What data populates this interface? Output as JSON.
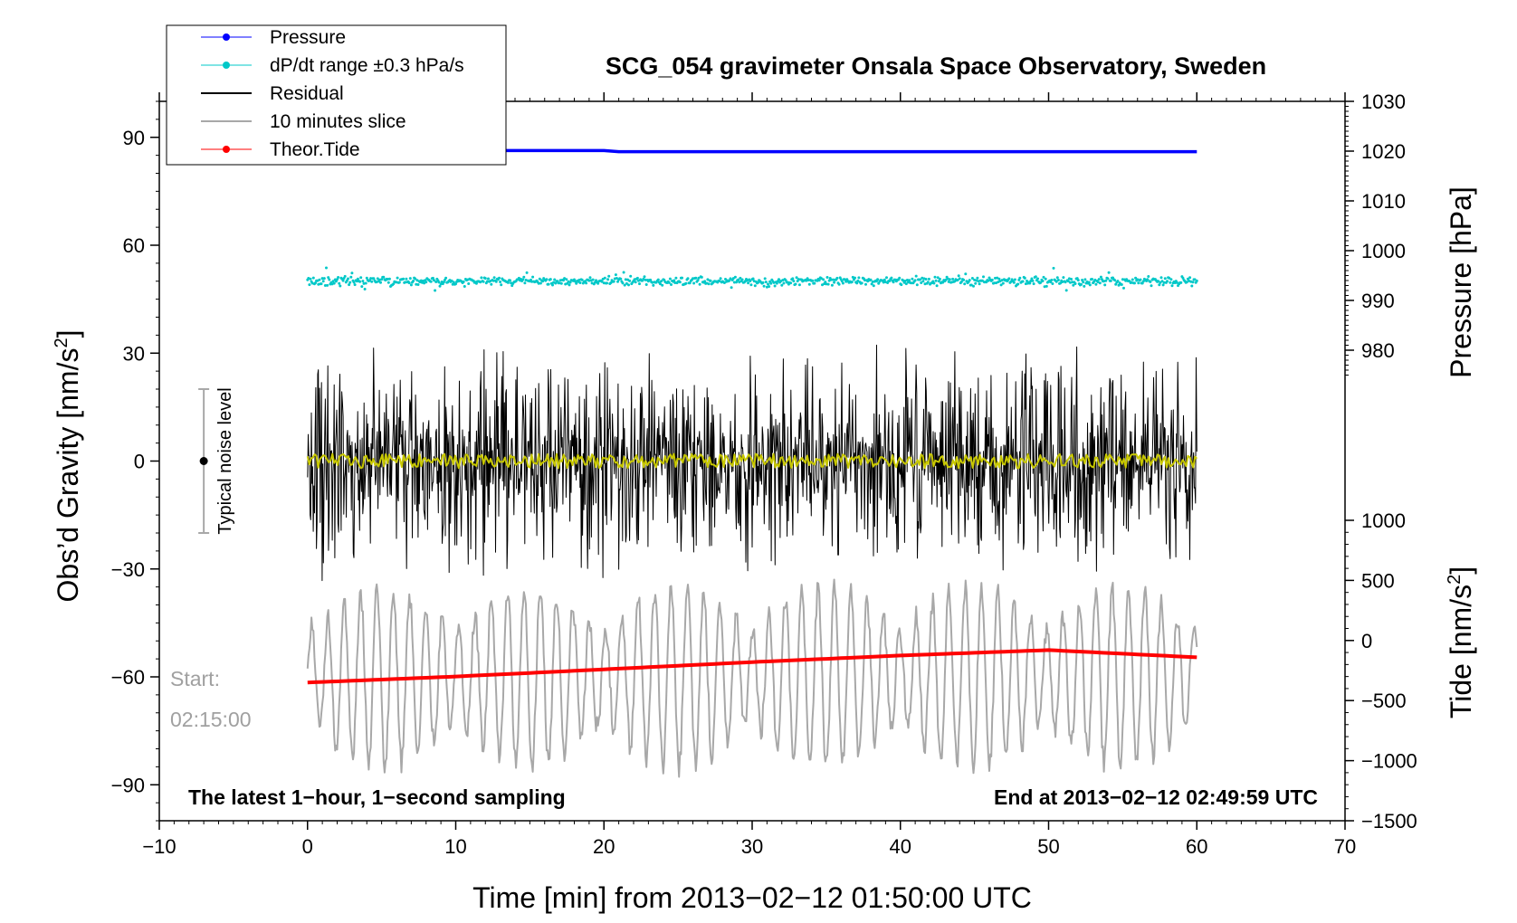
{
  "chart_data": {
    "type": "line",
    "title": "SCG_054 gravimeter Onsala Space Observatory, Sweden",
    "xlabel": "Time [min] from 2013−02−12 01:50:00 UTC",
    "ylabel_left": "Obs’d Gravity [nm/s",
    "ylabel_left_sup": "2",
    "ylabel_left_close": "]",
    "ylabel_right_top": "Pressure [hPa]",
    "ylabel_right_bottom": "Tide [nm/s",
    "ylabel_right_bottom_sup": "2",
    "ylabel_right_bottom_close": "]",
    "xlim": [
      -10,
      70
    ],
    "ylim_left": [
      -100,
      100
    ],
    "ylim_pressure": [
      970,
      1030
    ],
    "ylim_tide": [
      -1500,
      1000
    ],
    "x_ticks": [
      -10,
      0,
      10,
      20,
      30,
      40,
      50,
      60,
      70
    ],
    "x_tick_labels": [
      "−10",
      "0",
      "10",
      "20",
      "30",
      "40",
      "50",
      "60",
      "70"
    ],
    "y_left_ticks": [
      -90,
      -60,
      -30,
      0,
      30,
      60,
      90
    ],
    "y_left_tick_labels": [
      "−90",
      "−60",
      "−30",
      "0",
      "30",
      "60",
      "90"
    ],
    "pressure_ticks": [
      980,
      990,
      1000,
      1010,
      1020,
      1030
    ],
    "pressure_tick_labels": [
      "980",
      "990",
      "1000",
      "1010",
      "1020",
      "1030"
    ],
    "tide_ticks": [
      -1500,
      -1000,
      -500,
      0,
      500,
      1000
    ],
    "tide_tick_labels": [
      "−1500",
      "−1000",
      "−500",
      "0",
      "500",
      "1000"
    ],
    "annotation_left": "The latest 1−hour, 1−second sampling",
    "annotation_right": "End at 2013−02−12 02:49:59 UTC",
    "start_label": "Start:",
    "start_time": "02:15:00",
    "noise_label": "Typical noise level",
    "noise_bar": {
      "x": -7,
      "center": 0,
      "half_range": 20
    },
    "legend": [
      {
        "label": "Pressure",
        "color": "#0000ff",
        "marker": true
      },
      {
        "label": "dP/dt range ±0.3 hPa/s",
        "color": "#00c8c8",
        "marker": true
      },
      {
        "label": "Residual",
        "color": "#000000",
        "marker": false
      },
      {
        "label": "10 minutes slice",
        "color": "#a8a8a8",
        "marker": false
      },
      {
        "label": "Theor.Tide",
        "color": "#ff0000",
        "marker": true
      }
    ],
    "series": [
      {
        "name": "Pressure",
        "axis": "pressure",
        "color": "#0000ff",
        "x": [
          0,
          20,
          21,
          40,
          60
        ],
        "values": [
          1020.1,
          1020.1,
          1019.9,
          1019.9,
          1019.9
        ]
      },
      {
        "name": "dP/dt range ±0.3 hPa/s",
        "axis": "left",
        "color": "#00c8c8",
        "x": [
          0,
          60
        ],
        "values": [
          50,
          50
        ],
        "spread": 1.2
      },
      {
        "name": "Residual",
        "axis": "left",
        "color": "#000000",
        "x": [
          0,
          60
        ],
        "values": [
          0,
          0
        ],
        "amplitude": 30
      },
      {
        "name": "Residual (smoothed)",
        "axis": "left",
        "color": "#c8c800",
        "x": [
          0,
          60
        ],
        "values": [
          0,
          0
        ],
        "amplitude": 2
      },
      {
        "name": "10 minutes slice",
        "axis": "left",
        "color": "#a8a8a8",
        "x": [
          0,
          60
        ],
        "values": [
          -60,
          -60
        ],
        "amplitude": 25
      },
      {
        "name": "Theor.Tide",
        "axis": "tide",
        "color": "#ff0000",
        "x": [
          0,
          10,
          20,
          30,
          40,
          50,
          60
        ],
        "values": [
          -350,
          -300,
          -240,
          -180,
          -125,
          -80,
          -140
        ]
      }
    ]
  }
}
